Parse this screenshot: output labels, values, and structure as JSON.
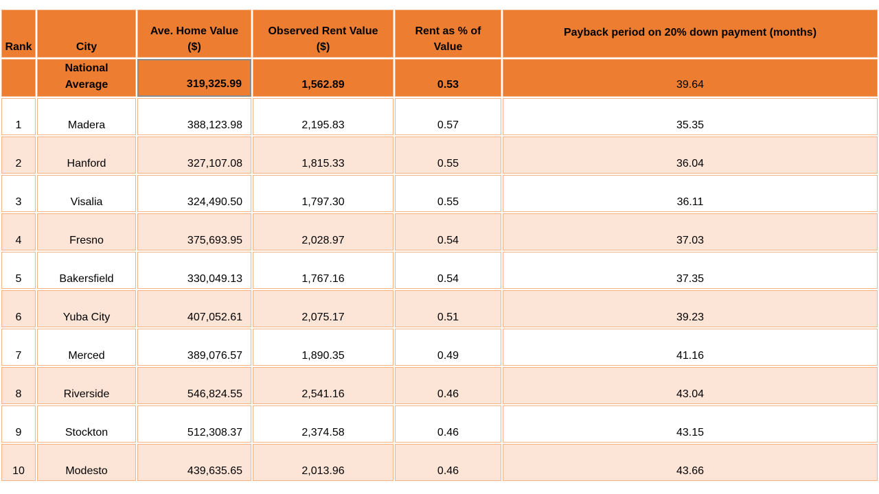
{
  "headers": {
    "rank": "Rank",
    "city": "City",
    "home": "Ave. Home Value ($)",
    "rent": "Observed Rent Value ($)",
    "pct": "Rent as % of Value",
    "payback": "Payback period on 20% down payment (months)"
  },
  "national": {
    "rank": "",
    "city": "National Average",
    "home": "319,325.99",
    "rent": "1,562.89",
    "pct": "0.53",
    "payback": "39.64"
  },
  "rows": [
    {
      "rank": "1",
      "city": "Madera",
      "home": "388,123.98",
      "rent": "2,195.83",
      "pct": "0.57",
      "payback": "35.35"
    },
    {
      "rank": "2",
      "city": "Hanford",
      "home": "327,107.08",
      "rent": "1,815.33",
      "pct": "0.55",
      "payback": "36.04"
    },
    {
      "rank": "3",
      "city": "Visalia",
      "home": "324,490.50",
      "rent": "1,797.30",
      "pct": "0.55",
      "payback": "36.11"
    },
    {
      "rank": "4",
      "city": "Fresno",
      "home": "375,693.95",
      "rent": "2,028.97",
      "pct": "0.54",
      "payback": "37.03"
    },
    {
      "rank": "5",
      "city": "Bakersfield",
      "home": "330,049.13",
      "rent": "1,767.16",
      "pct": "0.54",
      "payback": "37.35"
    },
    {
      "rank": "6",
      "city": "Yuba City",
      "home": "407,052.61",
      "rent": "2,075.17",
      "pct": "0.51",
      "payback": "39.23"
    },
    {
      "rank": "7",
      "city": "Merced",
      "home": "389,076.57",
      "rent": "1,890.35",
      "pct": "0.49",
      "payback": "41.16"
    },
    {
      "rank": "8",
      "city": "Riverside",
      "home": "546,824.55",
      "rent": "2,541.16",
      "pct": "0.46",
      "payback": "43.04"
    },
    {
      "rank": "9",
      "city": "Stockton",
      "home": "512,308.37",
      "rent": "2,374.58",
      "pct": "0.46",
      "payback": "43.15"
    },
    {
      "rank": "10",
      "city": "Modesto",
      "home": "439,635.65",
      "rent": "2,013.96",
      "pct": "0.46",
      "payback": "43.66"
    }
  ]
}
